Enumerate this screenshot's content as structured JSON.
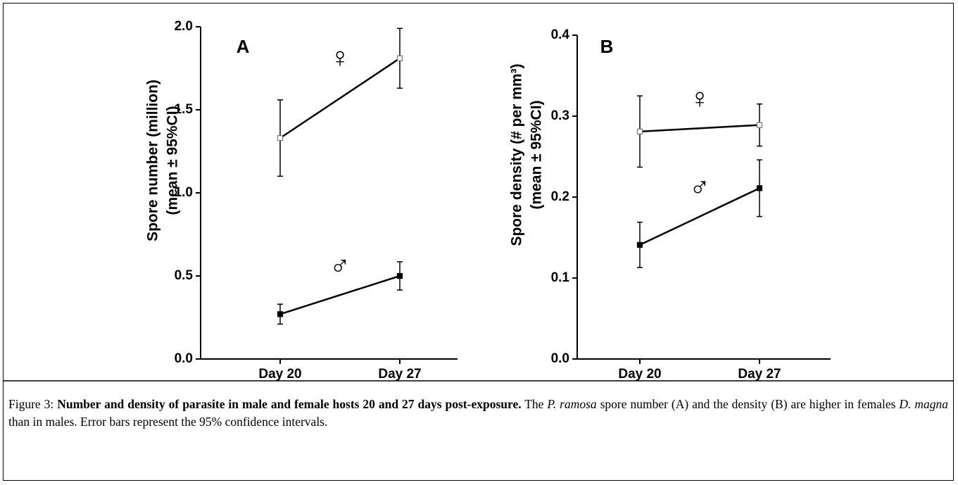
{
  "chart_data": [
    {
      "type": "line",
      "panel": "A",
      "ylabel": [
        "Spore number (million)",
        "(mean ± 95%CI)"
      ],
      "categories": [
        "Day 20",
        "Day 27"
      ],
      "ylim": [
        0,
        2
      ],
      "yticks": [
        {
          "value": 0,
          "label": "0.0"
        },
        0.5,
        {
          "value": 1,
          "label": "1.0"
        },
        1.5,
        {
          "value": 2,
          "label": "2.0"
        }
      ],
      "series": [
        {
          "name": "♀",
          "color": "#000000",
          "marker": "open-square",
          "values": [
            1.33,
            1.81
          ],
          "errors": [
            0.23,
            0.18
          ]
        },
        {
          "name": "♂",
          "color": "#000000",
          "marker": "filled-square",
          "values": [
            0.27,
            0.5
          ],
          "errors": [
            0.06,
            0.085
          ]
        }
      ]
    },
    {
      "type": "line",
      "panel": "B",
      "ylabel": [
        "Spore density (# per mm³)",
        "(mean ± 95%CI)"
      ],
      "categories": [
        "Day 20",
        "Day 27"
      ],
      "ylim": [
        0,
        0.4
      ],
      "yticks": [
        {
          "value": 0,
          "label": "0.0"
        },
        0.1,
        0.2,
        0.3,
        0.4
      ],
      "series": [
        {
          "name": "♀",
          "color": "#000000",
          "marker": "open-square",
          "values": [
            0.281,
            0.289
          ],
          "errors": [
            0.044,
            0.026
          ]
        },
        {
          "name": "♂",
          "color": "#000000",
          "marker": "filled-square",
          "values": [
            0.141,
            0.211
          ],
          "errors": [
            0.028,
            0.035
          ]
        }
      ]
    }
  ],
  "caption": [
    {
      "text": "Figure 3: "
    },
    {
      "text": "Number and density of parasite in male and female hosts 20 and 27 days post-exposure.",
      "style": "bold"
    },
    {
      "text": " The "
    },
    {
      "text": "P. ramosa",
      "style": "italic"
    },
    {
      "text": " spore number (A) and the density (B) are higher in females "
    },
    {
      "text": "D. magna",
      "style": "italic"
    },
    {
      "text": " than in males. Error bars represent the 95% confidence intervals."
    }
  ]
}
